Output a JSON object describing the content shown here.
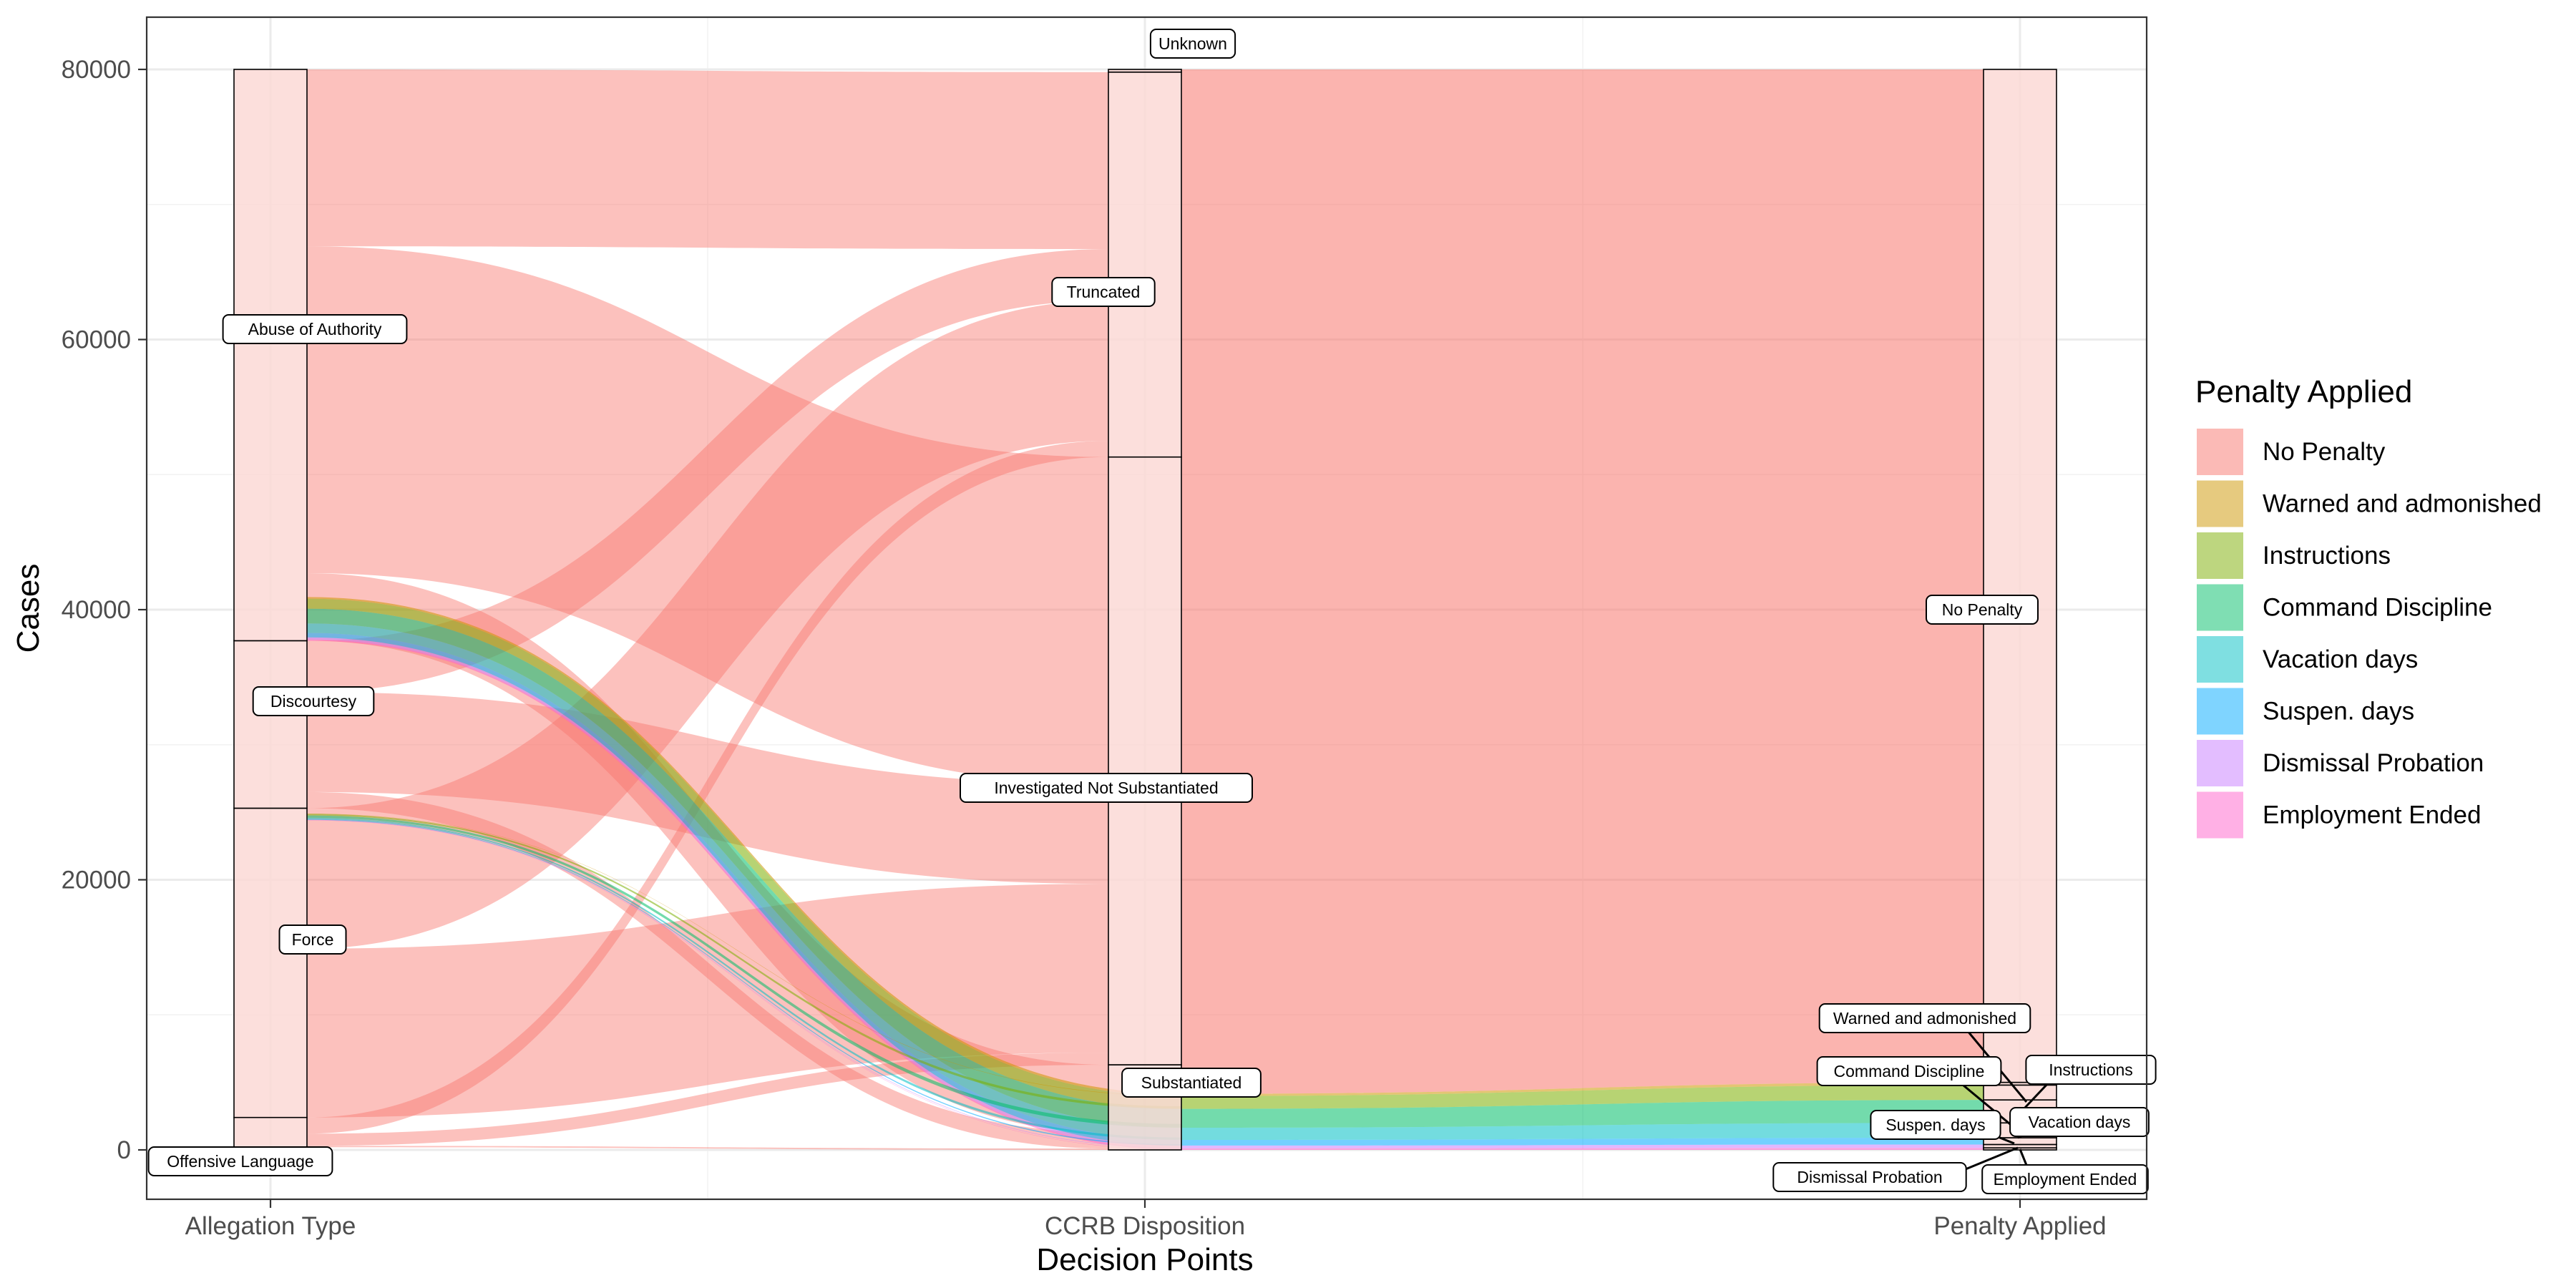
{
  "chart_data": {
    "type": "alluvial",
    "title": "",
    "xlabel": "Decision Points",
    "ylabel": "Cases",
    "ylim": [
      -4000,
      83500
    ],
    "y_ticks": [
      0,
      20000,
      40000,
      60000,
      80000
    ],
    "grid": true,
    "legend_position": "right",
    "axes": [
      "Allegation Type",
      "CCRB Disposition",
      "Penalty Applied"
    ],
    "strata": [
      [
        {
          "label": "Offensive Language",
          "value": 2400
        },
        {
          "label": "Force",
          "value": 22900
        },
        {
          "label": "Discourtesy",
          "value": 12400
        },
        {
          "label": "Abuse of Authority",
          "value": 42300
        }
      ],
      [
        {
          "label": "Substantiated",
          "value": 6300
        },
        {
          "label": "Investigated Not Substantiated",
          "value": 45000
        },
        {
          "label": "Truncated",
          "value": 28500
        },
        {
          "label": "Unknown",
          "value": 200
        }
      ],
      [
        {
          "label": "Employment Ended",
          "value": 150
        },
        {
          "label": "Dismissal Probation",
          "value": 250
        },
        {
          "label": "Suspen. days",
          "value": 500
        },
        {
          "label": "Vacation days",
          "value": 1100
        },
        {
          "label": "Command Discipline",
          "value": 1700
        },
        {
          "label": "Instructions",
          "value": 1100
        },
        {
          "label": "Warned and admonished",
          "value": 200
        },
        {
          "label": "No Penalty",
          "value": 75000
        }
      ]
    ],
    "legend": {
      "title": "Penalty Applied",
      "entries": [
        {
          "label": "No Penalty",
          "color": "#F8766D"
        },
        {
          "label": "Warned and admonished",
          "color": "#CD9600"
        },
        {
          "label": "Instructions",
          "color": "#7CAE00"
        },
        {
          "label": "Command Discipline",
          "color": "#00BE67"
        },
        {
          "label": "Vacation days",
          "color": "#00BFC4"
        },
        {
          "label": "Suspen. days",
          "color": "#00A9FF"
        },
        {
          "label": "Dismissal Probation",
          "color": "#C77CFF"
        },
        {
          "label": "Employment Ended",
          "color": "#FF61CC"
        }
      ]
    },
    "flows": [
      {
        "allegation": "Abuse of Authority",
        "disposition": "Truncated",
        "penalty": "No Penalty",
        "value": 13100
      },
      {
        "allegation": "Abuse of Authority",
        "disposition": "Investigated Not Substantiated",
        "value": 24200
      },
      {
        "allegation": "Abuse of Authority",
        "disposition": "Substantiated",
        "value": 5000
      },
      {
        "allegation": "Discourtesy",
        "disposition": "Truncated",
        "value": 3800
      },
      {
        "allegation": "Discourtesy",
        "disposition": "Investigated Not Substantiated",
        "value": 7400
      },
      {
        "allegation": "Discourtesy",
        "disposition": "Substantiated",
        "value": 1200
      },
      {
        "allegation": "Force",
        "disposition": "Truncated",
        "value": 10400
      },
      {
        "allegation": "Force",
        "disposition": "Investigated Not Substantiated",
        "value": 12500
      },
      {
        "allegation": "Offensive Language",
        "disposition": "Truncated",
        "value": 1200
      },
      {
        "allegation": "Offensive Language",
        "disposition": "Investigated Not Substantiated",
        "value": 900
      },
      {
        "allegation": "Offensive Language",
        "disposition": "Substantiated",
        "value": 100
      }
    ]
  }
}
